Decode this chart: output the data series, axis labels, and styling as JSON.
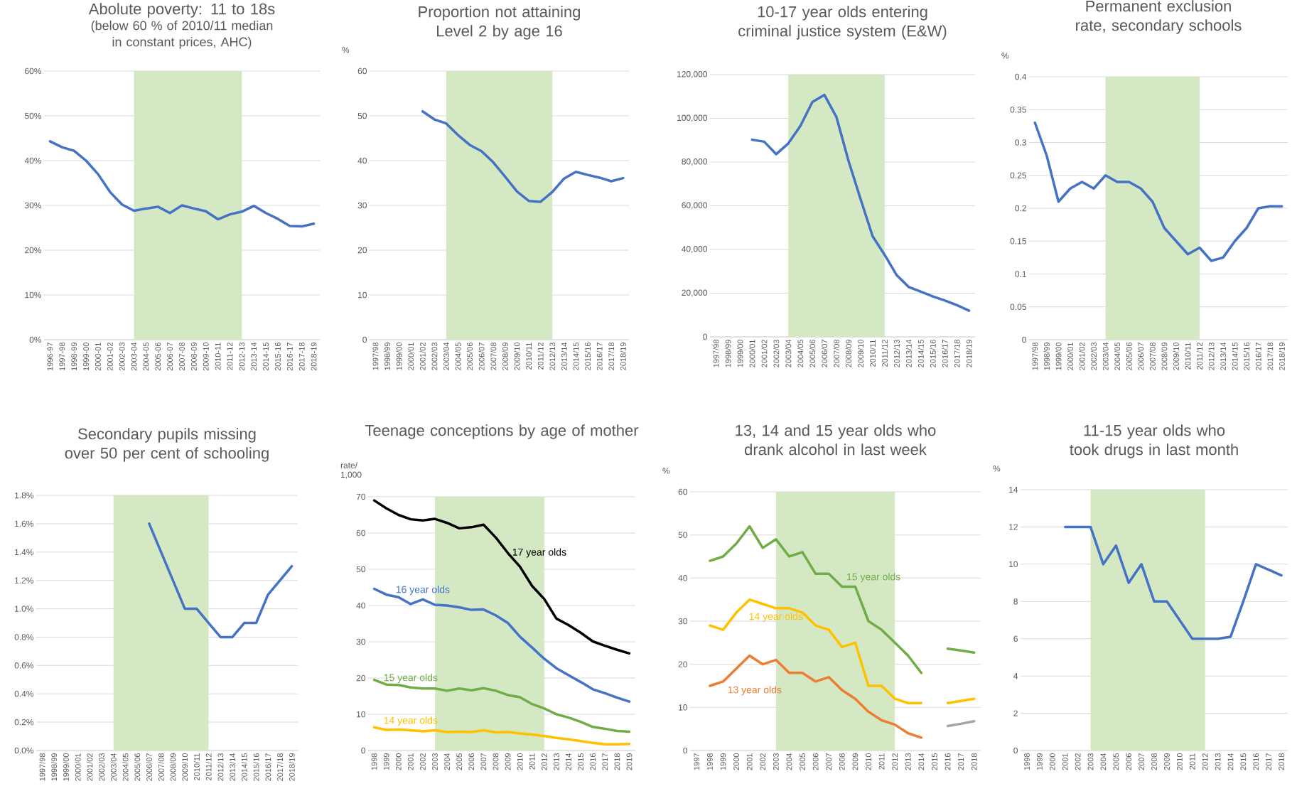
{
  "chart_data": [
    {
      "type": "line",
      "title": "Abolute poverty: 11 to 18s",
      "subtitle": "(below 60 % of 2010/11 median in constant prices, AHC)",
      "categories": [
        "1996-97",
        "1997-98",
        "1998-99",
        "1999-00",
        "2000-01",
        "2001-02",
        "2002-03",
        "2003-04",
        "2004-05",
        "2005-06",
        "2006-07",
        "2007-08",
        "2008-09",
        "2009-10",
        "2010-11",
        "2011-12",
        "2012-13",
        "2013-14",
        "2014-15",
        "2015-16",
        "2016-17",
        "2017-18",
        "2018-19"
      ],
      "values": [
        44.3,
        43,
        42.2,
        40,
        37,
        33,
        30.2,
        28.8,
        29.3,
        29.7,
        28.3,
        30,
        29.3,
        28.7,
        26.9,
        28,
        28.6,
        29.9,
        28.3,
        27,
        25.4,
        25.3,
        25.9
      ],
      "color": "#4472c4",
      "ylim": [
        0,
        60
      ],
      "yticks": [
        {
          "value": 0,
          "label": "0%"
        },
        {
          "value": 10,
          "label": "10%"
        },
        {
          "value": 20,
          "label": "20%"
        },
        {
          "value": 30,
          "label": "30%"
        },
        {
          "value": 40,
          "label": "40%"
        },
        {
          "value": 50,
          "label": "50%"
        },
        {
          "value": 60,
          "label": "60%"
        }
      ],
      "grid": "y",
      "bands": [
        {
          "axis": "x",
          "from": "2003-04",
          "to": "2012-13",
          "color": "#d5e8c4"
        }
      ]
    },
    {
      "type": "line",
      "title": "Proportion not attaining Level 2 by age 16",
      "ylabel": "%",
      "categories": [
        "1997/98",
        "1998/99",
        "1999/00",
        "2000/01",
        "2001/02",
        "2002/03",
        "2003/04",
        "2004/05",
        "2005/06",
        "2006/07",
        "2007/08",
        "2008/09",
        "2009/10",
        "2010/11",
        "2011/12",
        "2012/13",
        "2013/14",
        "2014/15",
        "2015/16",
        "2016/17",
        "2017/18",
        "2018/19"
      ],
      "values": [
        null,
        null,
        null,
        null,
        51,
        49.2,
        48.3,
        45.7,
        43.5,
        42.1,
        39.6,
        36.4,
        33.1,
        31,
        30.8,
        33,
        36,
        37.5,
        36.8,
        36.2,
        35.4,
        36.1
      ],
      "color": "#4472c4",
      "ylim": [
        0,
        60
      ],
      "yticks": [
        0,
        10,
        20,
        30,
        40,
        50,
        60
      ],
      "grid": "y",
      "bands": [
        {
          "axis": "x",
          "from": "2003/04",
          "to": "2012/13",
          "color": "#d5e8c4"
        }
      ]
    },
    {
      "type": "line",
      "title": "10-17 year olds entering criminal justice system (E&W)",
      "categories": [
        "1997/98",
        "1998/99",
        "1999/00",
        "2000/01",
        "2001/02",
        "2002/03",
        "2003/04",
        "2004/05",
        "2005/06",
        "2006/07",
        "2007/08",
        "2008/09",
        "2009/10",
        "2010/11",
        "2011/12",
        "2012/13",
        "2013/14",
        "2014/15",
        "2015/16",
        "2016/17",
        "2017/18",
        "2018/19"
      ],
      "values": [
        null,
        null,
        null,
        90200,
        89300,
        83600,
        88500,
        96500,
        107500,
        110700,
        100500,
        80500,
        63000,
        46000,
        37500,
        28200,
        22800,
        20700,
        18500,
        16600,
        14500,
        12000
      ],
      "color": "#4472c4",
      "ylim": [
        0,
        120000
      ],
      "yticks": [
        0,
        {
          "value": 20000,
          "label": "20,000"
        },
        {
          "value": 40000,
          "label": "40,000"
        },
        {
          "value": 60000,
          "label": "60,000"
        },
        {
          "value": 80000,
          "label": "80,000"
        },
        {
          "value": 100000,
          "label": "100,000"
        },
        {
          "value": 120000,
          "label": "120,000"
        }
      ],
      "grid": "y",
      "bands": [
        {
          "axis": "x",
          "from": "2003/04",
          "to": "2011/12",
          "color": "#d5e8c4"
        }
      ]
    },
    {
      "type": "line",
      "title": "Permanent exclusion rate, secondary schools",
      "ylabel": "%",
      "categories": [
        "1997/98",
        "1998/99",
        "1999/00",
        "2000/01",
        "2001/02",
        "2002/03",
        "2003/04",
        "2004/05",
        "2005/06",
        "2006/07",
        "2007/08",
        "2008/09",
        "2009/10",
        "2010/11",
        "2011/12",
        "2012/13",
        "2013/14",
        "2014/15",
        "2015/16",
        "2016/17",
        "2017/18",
        "2018/19"
      ],
      "values": [
        0.33,
        0.28,
        0.21,
        0.23,
        0.24,
        0.23,
        0.25,
        0.24,
        0.24,
        0.23,
        0.21,
        0.17,
        0.15,
        0.13,
        0.14,
        0.12,
        0.125,
        0.15,
        0.17,
        0.2,
        0.203,
        0.203
      ],
      "color": "#4472c4",
      "ylim": [
        0,
        0.4
      ],
      "yticks": [
        0,
        0.05,
        0.1,
        0.15,
        0.2,
        0.25,
        0.3,
        0.35,
        0.4
      ],
      "grid": "y",
      "bands": [
        {
          "axis": "x",
          "from": "2003/04",
          "to": "2011/12",
          "color": "#d5e8c4"
        }
      ]
    },
    {
      "type": "line",
      "title": "Secondary pupils missing over 50 per cent of schooling",
      "categories": [
        "1997/98",
        "1998/99",
        "1999/00",
        "2000/01",
        "2001/02",
        "2002/03",
        "2003/04",
        "2004/05",
        "2005/06",
        "2006/07",
        "2007/08",
        "2008/09",
        "2009/10",
        "2010/11",
        "2011/12",
        "2012/13",
        "2013/14",
        "2014/15",
        "2015/16",
        "2016/17",
        "2017/18",
        "2018/19"
      ],
      "values": [
        null,
        null,
        null,
        null,
        null,
        null,
        null,
        null,
        null,
        1.6,
        1.4,
        1.2,
        1.0,
        1.0,
        0.9,
        0.8,
        0.8,
        0.9,
        0.9,
        1.1,
        1.2,
        1.3
      ],
      "color": "#4472c4",
      "ylim": [
        0,
        1.8
      ],
      "yticks": [
        {
          "value": 0,
          "label": "0.0%"
        },
        {
          "value": 0.2,
          "label": "0.2%"
        },
        {
          "value": 0.4,
          "label": "0.4%"
        },
        {
          "value": 0.6,
          "label": "0.6%"
        },
        {
          "value": 0.8,
          "label": "0.8%"
        },
        {
          "value": 1.0,
          "label": "1.0%"
        },
        {
          "value": 1.2,
          "label": "1.2%"
        },
        {
          "value": 1.4,
          "label": "1.4%"
        },
        {
          "value": 1.6,
          "label": "1.6%"
        },
        {
          "value": 1.8,
          "label": "1.8%"
        }
      ],
      "grid": "y",
      "bands": [
        {
          "axis": "x",
          "from": "2003/04",
          "to": "2011/12",
          "color": "#d5e8c4"
        }
      ]
    },
    {
      "type": "line",
      "title": "Teenage conceptions by age of mother",
      "ylabel": "rate/ 1,000",
      "categories": [
        "1998",
        "1999",
        "2000",
        "2001",
        "2002",
        "2003",
        "2004",
        "2005",
        "2006",
        "2007",
        "2008",
        "2009",
        "2010",
        "2011",
        "2012",
        "2013",
        "2014",
        "2015",
        "2016",
        "2017",
        "2018",
        "2019"
      ],
      "series": [
        {
          "name": "17 year olds",
          "color": "#000000",
          "values": [
            69,
            66.8,
            65,
            63.8,
            63.5,
            63.9,
            62.8,
            61.3,
            61.6,
            62.3,
            58.8,
            54.5,
            50.7,
            45.4,
            41.8,
            36.4,
            34.6,
            32.5,
            30.1,
            28.9,
            27.8,
            26.8
          ]
        },
        {
          "name": "16 year olds",
          "color": "#4472c4",
          "values": [
            44.6,
            43,
            42.3,
            40.4,
            41.7,
            40.2,
            40,
            39.5,
            38.8,
            38.9,
            37.3,
            35.2,
            31.4,
            28.4,
            25.3,
            22.7,
            20.8,
            18.9,
            16.9,
            15.8,
            14.6,
            13.5
          ]
        },
        {
          "name": "15 year olds",
          "color": "#70ad47",
          "values": [
            19.5,
            18.2,
            18.1,
            17.4,
            17.1,
            17.1,
            16.5,
            17.1,
            16.6,
            17.2,
            16.5,
            15.3,
            14.7,
            12.8,
            11.6,
            10,
            9.1,
            7.9,
            6.5,
            6,
            5.4,
            5.2
          ]
        },
        {
          "name": "14 year olds",
          "color": "#ffc000",
          "values": [
            6.4,
            5.7,
            5.8,
            5.6,
            5.3,
            5.6,
            5.1,
            5.2,
            5.1,
            5.6,
            5.0,
            5.1,
            4.7,
            4.4,
            4.0,
            3.5,
            3.1,
            2.6,
            2.1,
            1.7,
            1.7,
            1.8
          ]
        }
      ],
      "ylim": [
        0,
        70
      ],
      "yticks": [
        0,
        10,
        20,
        30,
        40,
        50,
        60,
        70
      ],
      "grid": "y",
      "bands": [
        {
          "axis": "x",
          "from": "2003",
          "to": "2012",
          "color": "#d5e8c4"
        }
      ]
    },
    {
      "type": "line",
      "title": "13, 14 and 15 year olds who drank alcohol in last week",
      "ylabel": "%",
      "categories": [
        "1997",
        "1998",
        "1999",
        "2000",
        "2001",
        "2002",
        "2003",
        "2004",
        "2005",
        "2006",
        "2007",
        "2008",
        "2009",
        "2010",
        "2011",
        "2012",
        "2013",
        "2014",
        "2015",
        "2016",
        "2017",
        "2018"
      ],
      "series": [
        {
          "name": "15 year olds",
          "color": "#70ad47",
          "values": [
            null,
            44,
            45,
            48,
            52,
            47,
            49,
            45,
            46,
            41,
            41,
            38,
            38,
            30,
            28,
            25,
            22,
            18,
            null,
            23.6,
            23.2,
            22.7
          ]
        },
        {
          "name": "14 year olds",
          "color": "#ffc000",
          "values": [
            null,
            29,
            28,
            32,
            35,
            34,
            33,
            33,
            32,
            29,
            28,
            24,
            25,
            15,
            15,
            12,
            11,
            11,
            null,
            11,
            11.5,
            12
          ]
        },
        {
          "name": "13 year olds",
          "color": "#ed7d31",
          "values": [
            null,
            15,
            16,
            19,
            22,
            20,
            21,
            18,
            18,
            16,
            17,
            14,
            12,
            9,
            7,
            6,
            4,
            3,
            null,
            null,
            null,
            null
          ]
        },
        {
          "color": "#a5a5a5",
          "values": [
            null,
            null,
            null,
            null,
            null,
            null,
            null,
            null,
            null,
            null,
            null,
            null,
            null,
            null,
            null,
            null,
            null,
            null,
            null,
            5.7,
            6.2,
            6.8
          ]
        }
      ],
      "ylim": [
        0,
        60
      ],
      "yticks": [
        0,
        10,
        20,
        30,
        40,
        50,
        60
      ],
      "grid": "y",
      "bands": [
        {
          "axis": "x",
          "from": "2003",
          "to": "2012",
          "color": "#d5e8c4"
        }
      ]
    },
    {
      "type": "line",
      "title": "11-15 year olds who took drugs in last month",
      "ylabel": "%",
      "categories": [
        "1998",
        "1999",
        "2000",
        "2001",
        "2002",
        "2003",
        "2004",
        "2005",
        "2006",
        "2007",
        "2008",
        "2009",
        "2010",
        "2011",
        "2012",
        "2013",
        "2014",
        "2015",
        "2016",
        "2017",
        "2018"
      ],
      "values": [
        null,
        null,
        null,
        12,
        12,
        12,
        10,
        11,
        9,
        10,
        8,
        8,
        7,
        6,
        6,
        6,
        6.1,
        8,
        10,
        9.7,
        9.4
      ],
      "color": "#4472c4",
      "ylim": [
        0,
        14
      ],
      "yticks": [
        0,
        2,
        4,
        6,
        8,
        10,
        12,
        14
      ],
      "grid": "y",
      "bands": [
        {
          "axis": "x",
          "from": "2003",
          "to": "2012",
          "color": "#d5e8c4"
        }
      ]
    }
  ]
}
